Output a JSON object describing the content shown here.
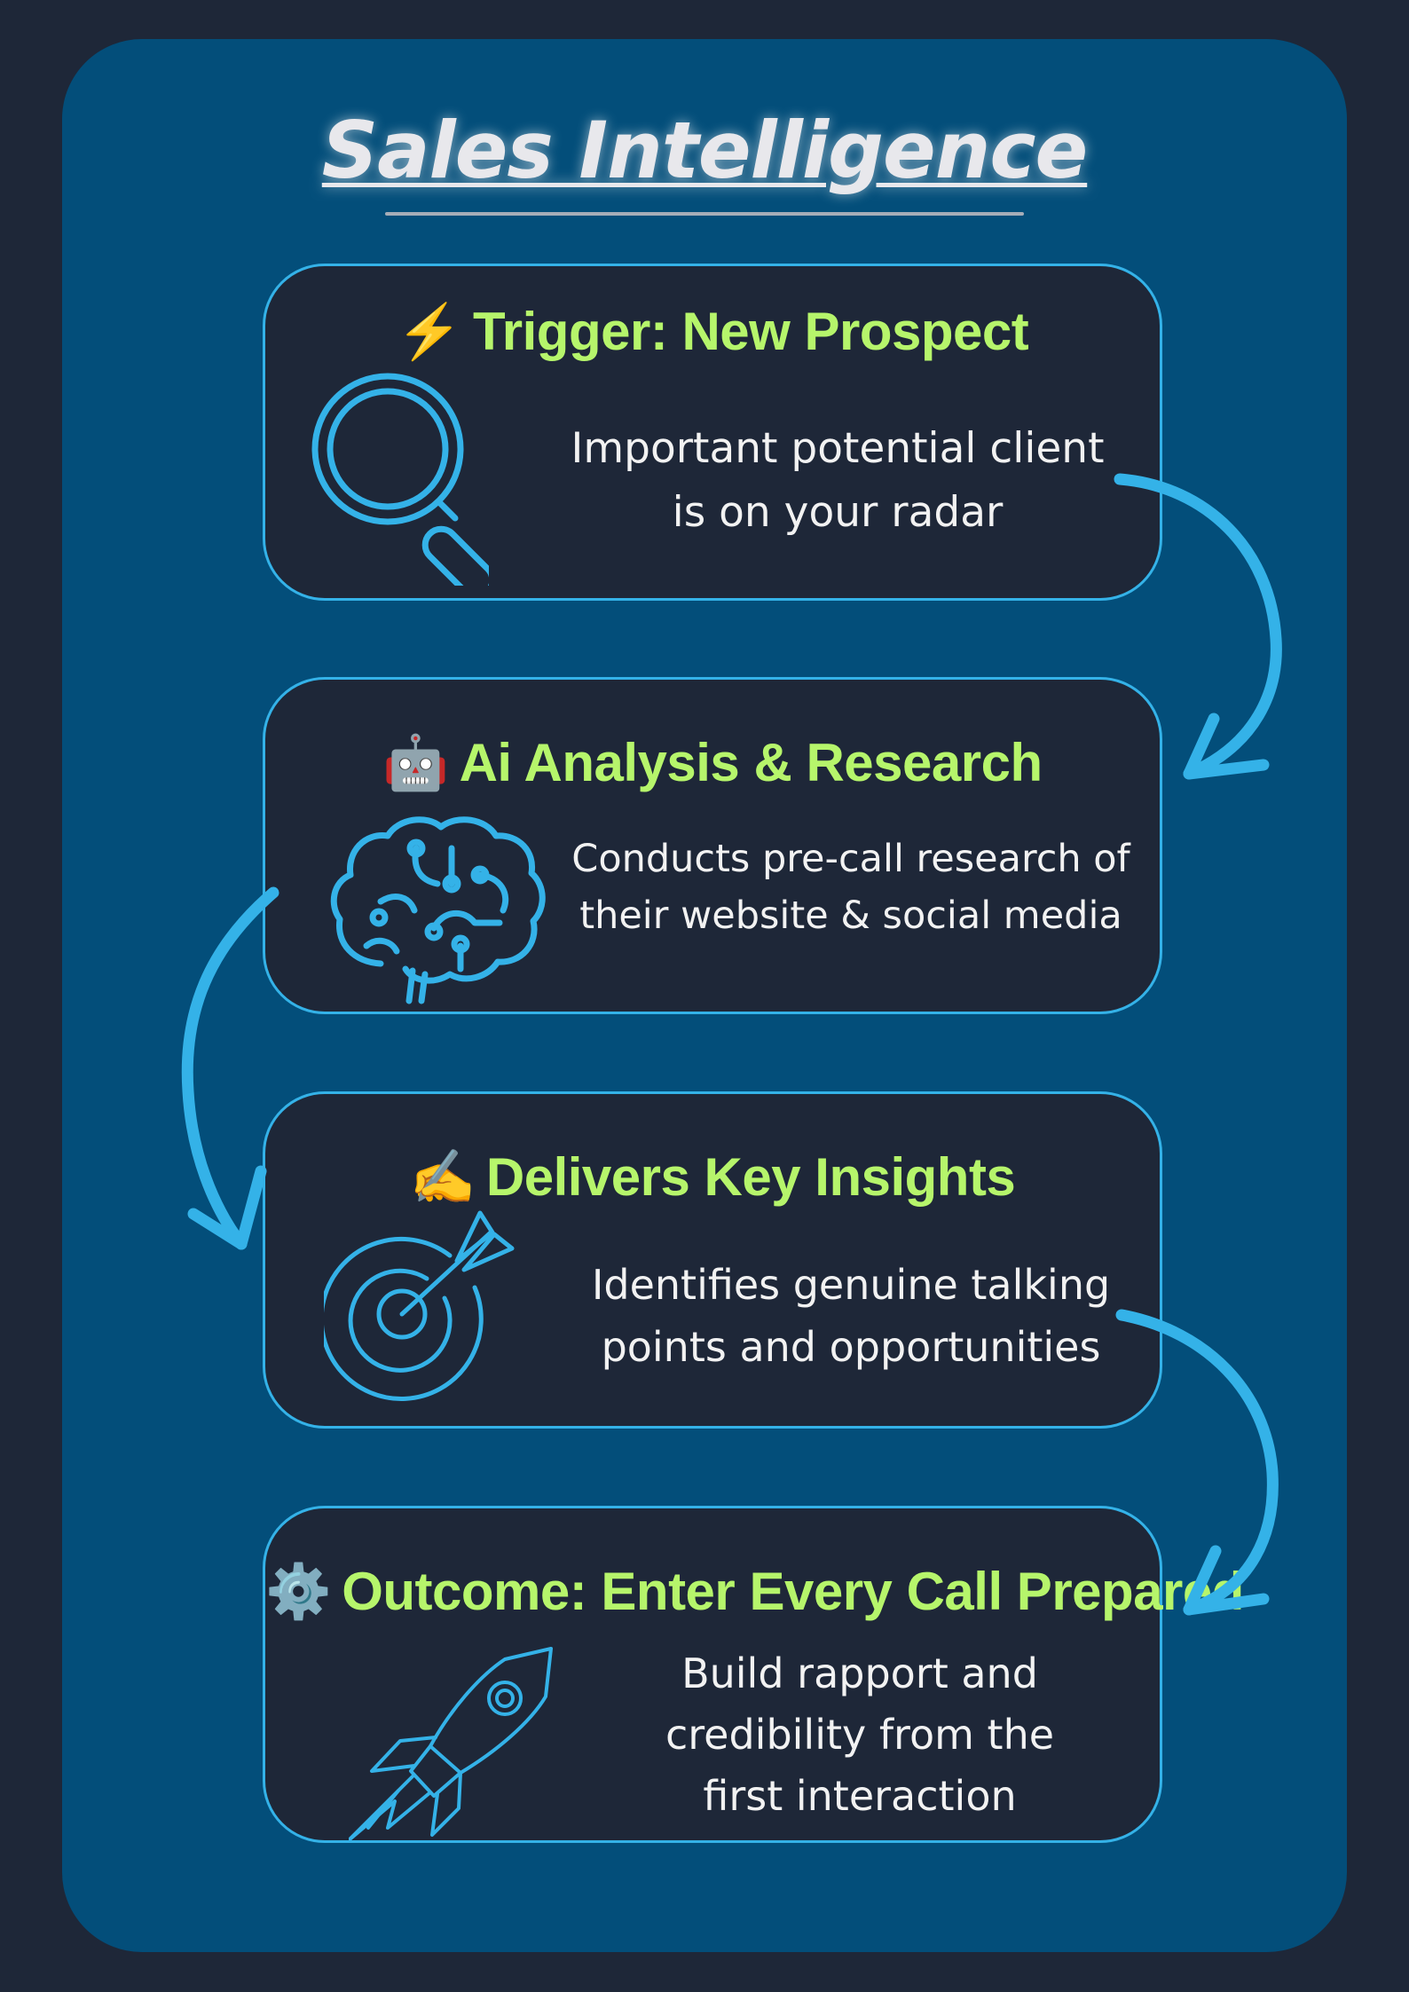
{
  "title": "Sales Intelligence",
  "steps": [
    {
      "emoji": "⚡",
      "heading": "Trigger: New Prospect",
      "lines": [
        "Important potential client",
        "is on your radar"
      ],
      "icon": "magnifier-icon"
    },
    {
      "emoji": "🤖",
      "heading": "Ai Analysis & Research",
      "lines": [
        "Conducts pre-call research of",
        "their website & social media"
      ],
      "icon": "brain-icon"
    },
    {
      "emoji": "✍️",
      "heading": "Delivers Key Insights",
      "lines": [
        "Identifies genuine talking",
        "points and opportunities"
      ],
      "icon": "target-icon"
    },
    {
      "emoji": "⚙️",
      "heading": "Outcome: Enter Every Call Prepared",
      "lines": [
        "Build rapport and",
        "credibility from the",
        "first interaction"
      ],
      "icon": "rocket-icon"
    }
  ],
  "colors": {
    "background": "#1e2738",
    "panel": "#034e7a",
    "accent": "#34b2e8",
    "heading": "#b6f56b",
    "text": "#f2f2f2"
  }
}
